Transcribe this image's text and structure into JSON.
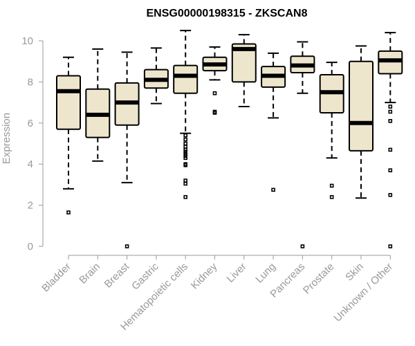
{
  "chart_data": {
    "type": "boxplot",
    "title": "ENSG00000198315 - ZKSCAN8",
    "ylabel": "Expression",
    "xlabel": "",
    "ylim": [
      0,
      10.5
    ],
    "yticks": [
      0,
      2,
      4,
      6,
      8,
      10
    ],
    "colors": {
      "box_fill": "#ede6cd",
      "box_stroke": "#000000",
      "axis": "#999999"
    },
    "categories": [
      "Bladder",
      "Brain",
      "Breast",
      "Gastric",
      "Hematopoietic cells",
      "Kidney",
      "Liver",
      "Lung",
      "Pancreas",
      "Prostate",
      "Skin",
      "Unknown / Other"
    ],
    "boxes": [
      {
        "name": "Bladder",
        "whisker_low": 2.8,
        "q1": 5.7,
        "median": 7.55,
        "q3": 8.3,
        "whisker_high": 9.2,
        "outliers": [
          1.65
        ]
      },
      {
        "name": "Brain",
        "whisker_low": 4.15,
        "q1": 5.3,
        "median": 6.4,
        "q3": 7.65,
        "whisker_high": 9.6,
        "outliers": []
      },
      {
        "name": "Breast",
        "whisker_low": 3.1,
        "q1": 5.9,
        "median": 7.0,
        "q3": 7.95,
        "whisker_high": 9.45,
        "outliers": [
          0.0
        ]
      },
      {
        "name": "Gastric",
        "whisker_low": 6.95,
        "q1": 7.7,
        "median": 8.1,
        "q3": 8.6,
        "whisker_high": 9.65,
        "outliers": []
      },
      {
        "name": "Hematopoietic cells",
        "whisker_low": 5.5,
        "q1": 7.45,
        "median": 8.3,
        "q3": 8.8,
        "whisker_high": 10.5,
        "outliers": [
          5.4,
          5.2,
          5.0,
          4.85,
          4.7,
          4.6,
          4.5,
          4.4,
          4.3,
          4.0,
          3.95,
          3.2,
          3.05,
          2.4
        ]
      },
      {
        "name": "Kidney",
        "whisker_low": 8.1,
        "q1": 8.55,
        "median": 8.85,
        "q3": 9.2,
        "whisker_high": 9.7,
        "outliers": [
          7.45,
          6.55,
          6.5
        ]
      },
      {
        "name": "Liver",
        "whisker_low": 6.8,
        "q1": 8.0,
        "median": 9.6,
        "q3": 9.85,
        "whisker_high": 10.3,
        "outliers": []
      },
      {
        "name": "Lung",
        "whisker_low": 6.25,
        "q1": 7.75,
        "median": 8.3,
        "q3": 8.75,
        "whisker_high": 9.4,
        "outliers": [
          2.75
        ]
      },
      {
        "name": "Pancreas",
        "whisker_low": 7.45,
        "q1": 8.45,
        "median": 8.8,
        "q3": 9.25,
        "whisker_high": 9.95,
        "outliers": [
          0.0
        ]
      },
      {
        "name": "Prostate",
        "whisker_low": 4.3,
        "q1": 6.5,
        "median": 7.5,
        "q3": 8.35,
        "whisker_high": 8.95,
        "outliers": [
          2.95,
          2.4
        ]
      },
      {
        "name": "Skin",
        "whisker_low": 2.35,
        "q1": 4.65,
        "median": 6.0,
        "q3": 9.0,
        "whisker_high": 9.75,
        "outliers": []
      },
      {
        "name": "Unknown / Other",
        "whisker_low": 7.0,
        "q1": 8.4,
        "median": 9.05,
        "q3": 9.5,
        "whisker_high": 10.4,
        "outliers": [
          6.8,
          6.55,
          6.1,
          4.7,
          3.7,
          2.5,
          0.0
        ]
      }
    ]
  }
}
